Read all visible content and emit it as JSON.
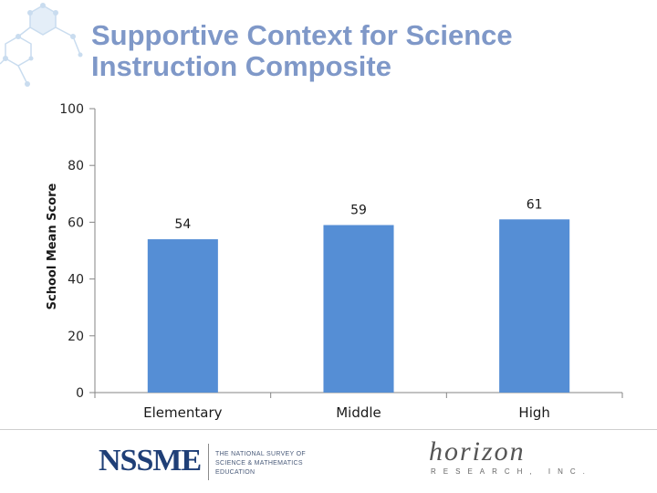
{
  "title_lines": [
    "Supportive Context for Science",
    "Instruction Composite"
  ],
  "chart_data": {
    "type": "bar",
    "categories": [
      "Elementary",
      "Middle",
      "High"
    ],
    "values": [
      54,
      59,
      61
    ],
    "data_labels": [
      "54",
      "59",
      "61"
    ],
    "title": "Supportive Context for Science Instruction Composite",
    "xlabel": "",
    "ylabel": "School Mean Score",
    "ylim": [
      0,
      100
    ],
    "yticks": [
      0,
      20,
      40,
      60,
      80,
      100
    ],
    "grid": false,
    "legend": "none",
    "bar_color": "#558ed5"
  },
  "footer": {
    "nssme_logo": "NSSME",
    "survey_line1": "THE NATIONAL SURVEY OF",
    "survey_line2": "SCIENCE & MATHEMATICS EDUCATION",
    "horizon_logo": "horizon",
    "horizon_sub": "RESEARCH, INC."
  },
  "colors": {
    "title": "#7f98c8",
    "bar": "#558ed5",
    "decor": "#c9dcef"
  }
}
